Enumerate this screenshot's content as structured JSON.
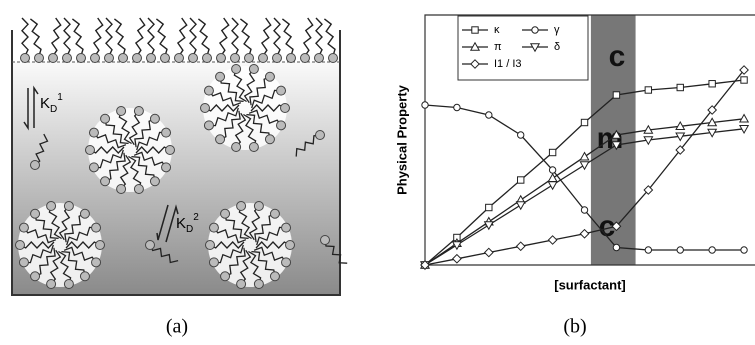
{
  "panel_a": {
    "caption": "(a)",
    "kd1": {
      "base": "K",
      "sub": "D",
      "sup": "1"
    },
    "kd2": {
      "base": "K",
      "sub": "D",
      "sup": "2"
    }
  },
  "chart_data": {
    "type": "line",
    "caption": "(b)",
    "x_label": "[surfactant]",
    "y_label": "Physical Property",
    "x": [
      0,
      1,
      2,
      3,
      4,
      5,
      6,
      7,
      8,
      9,
      10
    ],
    "xlim": [
      0,
      10.5
    ],
    "ylim": [
      0,
      10
    ],
    "band": [
      5.2,
      6.6
    ],
    "annotations": [
      "c",
      "m",
      "c"
    ],
    "series": [
      {
        "name": "κ",
        "marker": "square",
        "color": "#222",
        "values": [
          0,
          1.1,
          2.3,
          3.4,
          4.5,
          5.7,
          6.8,
          7.0,
          7.1,
          7.25,
          7.4
        ]
      },
      {
        "name": "γ",
        "marker": "circle",
        "color": "#222",
        "values": [
          6.4,
          6.3,
          6.0,
          5.2,
          3.8,
          2.2,
          0.7,
          0.6,
          0.6,
          0.6,
          0.6
        ]
      },
      {
        "name": "π",
        "marker": "triangle-up",
        "color": "#222",
        "values": [
          0,
          0.87,
          1.73,
          2.6,
          3.47,
          4.33,
          5.2,
          5.4,
          5.55,
          5.7,
          5.85
        ]
      },
      {
        "name": "δ",
        "marker": "triangle-down",
        "color": "#222",
        "values": [
          0,
          0.8,
          1.6,
          2.4,
          3.2,
          4.0,
          4.8,
          5.0,
          5.15,
          5.3,
          5.45
        ]
      },
      {
        "name": "I1 / I3",
        "marker": "diamond",
        "color": "#222",
        "values": [
          0,
          0.25,
          0.5,
          0.75,
          1.0,
          1.25,
          1.55,
          3.0,
          4.6,
          6.2,
          7.8
        ]
      }
    ]
  }
}
